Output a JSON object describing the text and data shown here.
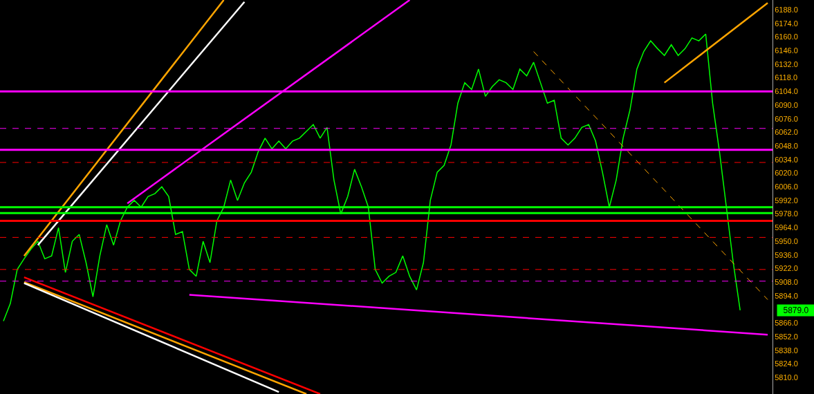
{
  "chart_data": {
    "type": "line",
    "categories": [
      null,
      null,
      null,
      null,
      null,
      null,
      null,
      null,
      null,
      null,
      null,
      null,
      null,
      null,
      null,
      null,
      null,
      null,
      null,
      null,
      null,
      null,
      null,
      null,
      null,
      null,
      null,
      null,
      null,
      null,
      null,
      null,
      null,
      null,
      null,
      null,
      null,
      null,
      null,
      null,
      null,
      null,
      null,
      null,
      null,
      null,
      null,
      null,
      null,
      null,
      null,
      null,
      null,
      null,
      null,
      null,
      null,
      null,
      null,
      null,
      null,
      null,
      null,
      null,
      null,
      null,
      null,
      null,
      null,
      null,
      null,
      null,
      null,
      null,
      null,
      null,
      null,
      null,
      null,
      null,
      null,
      null,
      null,
      null,
      null,
      null,
      null,
      null,
      null,
      null,
      null,
      null,
      null,
      null,
      null,
      null,
      null,
      null,
      null,
      null,
      null,
      null,
      null,
      null,
      null,
      null,
      null,
      null,
      null,
      null,
      null,
      null
    ],
    "ylim": [
      5793,
      6198
    ],
    "yticks": [
      {
        "value": 5810,
        "label": "5810.0"
      },
      {
        "value": 5824,
        "label": "5824.0"
      },
      {
        "value": 5838,
        "label": "5838.0"
      },
      {
        "value": 5852,
        "label": "5852.0"
      },
      {
        "value": 5866,
        "label": "5866.0"
      },
      {
        "value": 5894,
        "label": "5894.0"
      },
      {
        "value": 5908,
        "label": "5908.0"
      },
      {
        "value": 5922,
        "label": "5922.0"
      },
      {
        "value": 5936,
        "label": "5936.0"
      },
      {
        "value": 5950,
        "label": "5950.0"
      },
      {
        "value": 5964,
        "label": "5964.0"
      },
      {
        "value": 5978,
        "label": "5978.0"
      },
      {
        "value": 5992,
        "label": "5992.0"
      },
      {
        "value": 6006,
        "label": "6006.0"
      },
      {
        "value": 6020,
        "label": "6020.0"
      },
      {
        "value": 6034,
        "label": "6034.0"
      },
      {
        "value": 6048,
        "label": "6048.0"
      },
      {
        "value": 6062,
        "label": "6062.0"
      },
      {
        "value": 6076,
        "label": "6076.0"
      },
      {
        "value": 6090,
        "label": "6090.0"
      },
      {
        "value": 6104,
        "label": "6104.0"
      },
      {
        "value": 6118,
        "label": "6118.0"
      },
      {
        "value": 6132,
        "label": "6132.0"
      },
      {
        "value": 6146,
        "label": "6146.0"
      },
      {
        "value": 6160,
        "label": "6160.0"
      },
      {
        "value": 6174,
        "label": "6174.0"
      },
      {
        "value": 6188,
        "label": "6188.0"
      }
    ],
    "tick_labels": "y",
    "grid": false,
    "series": [
      {
        "color": "#00ff00",
        "values": [
          5868,
          5886,
          5921,
          5932,
          5942,
          5950,
          5932,
          5935,
          5964,
          5918,
          5950,
          5957,
          5928,
          5893,
          5935,
          5967,
          5946,
          5971,
          5985,
          5992,
          5985,
          5996,
          5999,
          6006,
          5996,
          5957,
          5960,
          5921,
          5914,
          5950,
          5928,
          5971,
          5985,
          6013,
          5992,
          6010,
          6021,
          6042,
          6056,
          6045,
          6053,
          6045,
          6053,
          6056,
          6063,
          6070,
          6056,
          6067,
          6013,
          5978,
          5996,
          6024,
          6006,
          5985,
          5921,
          5907,
          5914,
          5918,
          5935,
          5914,
          5900,
          5928,
          5992,
          6021,
          6028,
          6049,
          6092,
          6113,
          6106,
          6127,
          6099,
          6109,
          6116,
          6113,
          6106,
          6127,
          6120,
          6134,
          6113,
          6092,
          6095,
          6056,
          6049,
          6056,
          6067,
          6070,
          6053,
          6021,
          5985,
          6013,
          6056,
          6085,
          6127,
          6145,
          6156,
          6148,
          6141,
          6152,
          6141,
          6148,
          6159,
          6156,
          6163,
          6092,
          6042,
          5985,
          5928,
          5879,
          null,
          null,
          null,
          null
        ]
      },
      {
        "color": "#ff00ff",
        "values": [
          null,
          null,
          null,
          null,
          null,
          null,
          null,
          null,
          null,
          null,
          null,
          null,
          null,
          null,
          null,
          null,
          null,
          null,
          5989,
          null,
          null,
          null,
          null,
          null,
          null,
          null,
          null,
          null,
          null,
          null,
          null,
          null,
          null,
          null,
          null,
          null,
          null,
          null,
          null,
          null,
          null,
          null,
          null,
          null,
          null,
          null,
          null,
          null,
          null,
          null,
          null,
          null,
          null,
          null,
          null,
          null,
          null,
          null,
          null,
          6198,
          null,
          null,
          null,
          null,
          null,
          null,
          null,
          null,
          null,
          null,
          null,
          null,
          null,
          null,
          null,
          null,
          null,
          null,
          null,
          null,
          null,
          null,
          null,
          null,
          null,
          null,
          null,
          null,
          null,
          null,
          null,
          null,
          null,
          null,
          null,
          null,
          null,
          null,
          null,
          null,
          null,
          null,
          null,
          null,
          null,
          null,
          null,
          null,
          null,
          null,
          null,
          null
        ]
      },
      {
        "color": "#ff00ff",
        "values": [
          null,
          null,
          null,
          null,
          null,
          null,
          null,
          null,
          null,
          null,
          null,
          null,
          null,
          null,
          null,
          null,
          null,
          null,
          null,
          null,
          null,
          null,
          null,
          null,
          null,
          null,
          null,
          5895,
          null,
          null,
          null,
          null,
          null,
          null,
          null,
          null,
          null,
          null,
          null,
          null,
          null,
          null,
          null,
          null,
          null,
          null,
          null,
          null,
          null,
          null,
          null,
          null,
          null,
          null,
          null,
          null,
          null,
          null,
          null,
          null,
          null,
          null,
          null,
          null,
          null,
          null,
          null,
          null,
          null,
          null,
          null,
          null,
          null,
          null,
          null,
          null,
          null,
          null,
          null,
          null,
          null,
          null,
          null,
          null,
          null,
          null,
          null,
          null,
          null,
          null,
          null,
          null,
          null,
          null,
          null,
          null,
          null,
          null,
          null,
          null,
          null,
          null,
          null,
          null,
          null,
          null,
          null,
          null,
          null,
          null,
          null,
          5854
        ]
      },
      {
        "color": "#ffa500",
        "values": [
          null,
          null,
          null,
          5935,
          null,
          null,
          null,
          null,
          null,
          null,
          null,
          null,
          null,
          null,
          null,
          null,
          null,
          null,
          null,
          null,
          null,
          null,
          null,
          null,
          null,
          null,
          null,
          null,
          null,
          null,
          null,
          null,
          6198,
          null,
          null,
          null,
          null,
          null,
          null,
          null,
          null,
          null,
          null,
          null,
          null,
          null,
          null,
          null,
          null,
          null,
          null,
          null,
          null,
          null,
          null,
          null,
          null,
          null,
          null,
          null,
          null,
          null,
          null,
          null,
          null,
          null,
          null,
          null,
          null,
          null,
          null,
          null,
          null,
          null,
          null,
          null,
          null,
          null,
          null,
          null,
          null,
          null,
          null,
          null,
          null,
          null,
          null,
          null,
          null,
          null,
          null,
          null,
          null,
          null,
          null,
          null,
          null,
          null,
          null,
          null,
          null,
          null,
          null,
          null,
          null,
          null,
          null,
          null,
          null,
          null,
          null,
          null
        ]
      },
      {
        "color": "#ffffff",
        "values": [
          null,
          null,
          null,
          null,
          null,
          5946,
          null,
          null,
          null,
          null,
          null,
          null,
          null,
          null,
          null,
          null,
          null,
          null,
          null,
          null,
          null,
          null,
          null,
          null,
          null,
          null,
          null,
          null,
          null,
          null,
          null,
          null,
          null,
          null,
          null,
          6196,
          null,
          null,
          null,
          null,
          null,
          null,
          null,
          null,
          null,
          null,
          null,
          null,
          null,
          null,
          null,
          null,
          null,
          null,
          null,
          null,
          null,
          null,
          null,
          null,
          null,
          null,
          null,
          null,
          null,
          null,
          null,
          null,
          null,
          null,
          null,
          null,
          null,
          null,
          null,
          null,
          null,
          null,
          null,
          null,
          null,
          null,
          null,
          null,
          null,
          null,
          null,
          null,
          null,
          null,
          null,
          null,
          null,
          null,
          null,
          null,
          null,
          null,
          null,
          null,
          null,
          null,
          null,
          null,
          null,
          null,
          null,
          null,
          null,
          null,
          null,
          null
        ]
      },
      {
        "color": "#ff0000",
        "values": [
          null,
          null,
          null,
          5913,
          null,
          null,
          null,
          null,
          null,
          null,
          null,
          null,
          null,
          null,
          null,
          null,
          null,
          null,
          null,
          null,
          null,
          null,
          null,
          null,
          null,
          null,
          null,
          null,
          null,
          null,
          null,
          null,
          null,
          null,
          null,
          null,
          null,
          null,
          null,
          null,
          null,
          null,
          null,
          null,
          null,
          null,
          5793,
          null,
          null,
          null,
          null,
          null,
          null,
          null,
          null,
          null,
          null,
          null,
          null,
          null,
          null,
          null,
          null,
          null,
          null,
          null,
          null,
          null,
          null,
          null,
          null,
          null,
          null,
          null,
          null,
          null,
          null,
          null,
          null,
          null,
          null,
          null,
          null,
          null,
          null,
          null,
          null,
          null,
          null,
          null,
          null,
          null,
          null,
          null,
          null,
          null,
          null,
          null,
          null,
          null,
          null,
          null,
          null,
          null,
          null,
          null,
          null,
          null,
          null,
          null,
          null,
          null
        ]
      },
      {
        "color": "#ffa500",
        "values": [
          null,
          null,
          null,
          5908,
          null,
          null,
          null,
          null,
          null,
          null,
          null,
          null,
          null,
          null,
          null,
          null,
          null,
          null,
          null,
          null,
          null,
          null,
          null,
          null,
          null,
          null,
          null,
          null,
          null,
          null,
          null,
          null,
          null,
          null,
          null,
          null,
          null,
          null,
          null,
          null,
          null,
          null,
          null,
          null,
          5793,
          null,
          null,
          null,
          null,
          null,
          null,
          null,
          null,
          null,
          null,
          null,
          null,
          null,
          null,
          null,
          null,
          null,
          null,
          null,
          null,
          null,
          null,
          null,
          null,
          null,
          null,
          null,
          null,
          null,
          null,
          null,
          null,
          null,
          null,
          null,
          null,
          null,
          null,
          null,
          null,
          null,
          null,
          null,
          null,
          null,
          null,
          null,
          null,
          null,
          null,
          null,
          null,
          null,
          null,
          null,
          null,
          null,
          null,
          null,
          null,
          null,
          null,
          null,
          null,
          null,
          null,
          null
        ]
      },
      {
        "color": "#ffffff",
        "values": [
          null,
          null,
          null,
          5907,
          null,
          null,
          null,
          null,
          null,
          null,
          null,
          null,
          null,
          null,
          null,
          null,
          null,
          null,
          null,
          null,
          null,
          null,
          null,
          null,
          null,
          null,
          null,
          null,
          null,
          null,
          null,
          null,
          null,
          null,
          null,
          null,
          null,
          null,
          null,
          null,
          5795,
          null,
          null,
          null,
          null,
          null,
          null,
          null,
          null,
          null,
          null,
          null,
          null,
          null,
          null,
          null,
          null,
          null,
          null,
          null,
          null,
          null,
          null,
          null,
          null,
          null,
          null,
          null,
          null,
          null,
          null,
          null,
          null,
          null,
          null,
          null,
          null,
          null,
          null,
          null,
          null,
          null,
          null,
          null,
          null,
          null,
          null,
          null,
          null,
          null,
          null,
          null,
          null,
          null,
          null,
          null,
          null,
          null,
          null,
          null,
          null,
          null,
          null,
          null,
          null,
          null,
          null,
          null,
          null,
          null,
          null,
          null
        ]
      },
      {
        "color": "#ffa500",
        "line_style": "dashed",
        "values": [
          null,
          null,
          null,
          null,
          null,
          null,
          null,
          null,
          null,
          null,
          null,
          null,
          null,
          null,
          null,
          null,
          null,
          null,
          null,
          null,
          null,
          null,
          null,
          null,
          null,
          null,
          null,
          null,
          null,
          null,
          null,
          null,
          null,
          null,
          null,
          null,
          null,
          null,
          null,
          null,
          null,
          null,
          null,
          null,
          null,
          null,
          null,
          null,
          null,
          null,
          null,
          null,
          null,
          null,
          null,
          null,
          null,
          null,
          null,
          null,
          null,
          null,
          null,
          null,
          null,
          null,
          null,
          null,
          null,
          null,
          null,
          null,
          null,
          null,
          null,
          null,
          null,
          6145,
          null,
          null,
          null,
          null,
          null,
          null,
          null,
          null,
          null,
          null,
          null,
          null,
          null,
          null,
          null,
          null,
          null,
          null,
          null,
          null,
          null,
          null,
          null,
          null,
          null,
          null,
          null,
          null,
          null,
          null,
          null,
          null,
          null,
          5890
        ]
      },
      {
        "color": "#ffa500",
        "values": [
          null,
          null,
          null,
          null,
          null,
          null,
          null,
          null,
          null,
          null,
          null,
          null,
          null,
          null,
          null,
          null,
          null,
          null,
          null,
          null,
          null,
          null,
          null,
          null,
          null,
          null,
          null,
          null,
          null,
          null,
          null,
          null,
          null,
          null,
          null,
          null,
          null,
          null,
          null,
          null,
          null,
          null,
          null,
          null,
          null,
          null,
          null,
          null,
          null,
          null,
          null,
          null,
          null,
          null,
          null,
          null,
          null,
          null,
          null,
          null,
          null,
          null,
          null,
          null,
          null,
          null,
          null,
          null,
          null,
          null,
          null,
          null,
          null,
          null,
          null,
          null,
          null,
          null,
          null,
          null,
          null,
          null,
          null,
          null,
          null,
          null,
          null,
          null,
          null,
          null,
          null,
          null,
          null,
          null,
          null,
          null,
          6113,
          null,
          null,
          null,
          null,
          null,
          null,
          null,
          null,
          null,
          null,
          null,
          null,
          null,
          null,
          6195
        ]
      }
    ],
    "ref_lines": [
      {
        "axis": "y",
        "value": 6104,
        "color": "#ff00ff",
        "line_style": "solid"
      },
      {
        "axis": "y",
        "value": 6044,
        "color": "#ff00ff",
        "line_style": "solid"
      },
      {
        "axis": "y",
        "value": 6066,
        "color": "#ff00ff",
        "line_style": "dashed"
      },
      {
        "axis": "y",
        "value": 5909,
        "color": "#ff00ff",
        "line_style": "dashed"
      },
      {
        "axis": "y",
        "value": 5985,
        "color": "#00ff00",
        "line_style": "solid"
      },
      {
        "axis": "y",
        "value": 5979,
        "color": "#00ff00",
        "line_style": "solid"
      },
      {
        "axis": "y",
        "value": 5971,
        "color": "#ff0000",
        "line_style": "solid"
      },
      {
        "axis": "y",
        "value": 6031,
        "color": "#ff0000",
        "line_style": "dashed"
      },
      {
        "axis": "y",
        "value": 5954,
        "color": "#ff0000",
        "line_style": "dashed"
      },
      {
        "axis": "y",
        "value": 5921,
        "color": "#ff0000",
        "line_style": "dashed"
      }
    ],
    "annotations": [
      "5879.0"
    ]
  }
}
